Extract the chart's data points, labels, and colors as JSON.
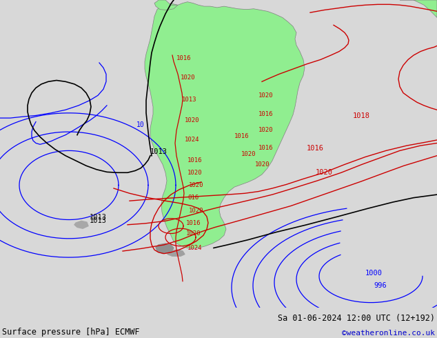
{
  "title_left": "Surface pressure [hPa] ECMWF",
  "title_right": "Sa 01-06-2024 12:00 UTC (12+192)",
  "credit": "©weatheronline.co.uk",
  "credit_color": "#0000cc",
  "bg_color": "#d8d8d8",
  "land_color": "#90ee90",
  "ocean_color": "#d8d8d8",
  "text_color": "#000000",
  "figsize": [
    6.34,
    4.9
  ],
  "dpi": 100
}
